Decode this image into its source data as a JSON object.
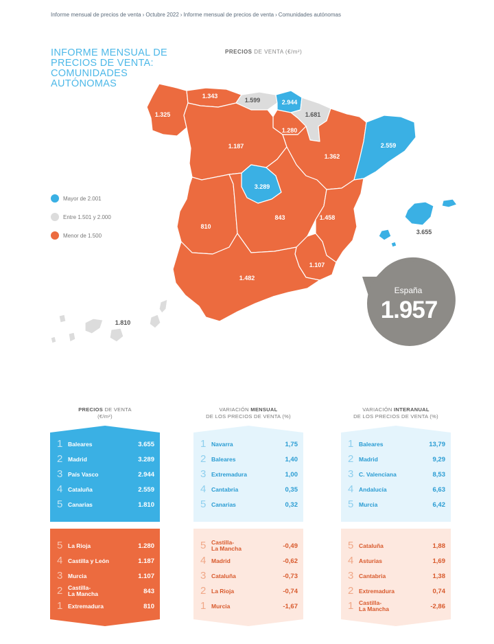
{
  "breadcrumb": [
    "Informe mensual de precios de venta",
    "Octubre 2022",
    "Informe mensual de precios de venta",
    "Comunidades autónomas"
  ],
  "title": "INFORME MENSUAL DE PRECIOS DE VENTA: COMUNIDADES AUTÓNOMAS",
  "map_heading": {
    "bold": "PRECIOS",
    "rest": " DE VENTA (€/m²)"
  },
  "legend": [
    {
      "label": "Mayor de 2.001",
      "color": "#3ab0e4"
    },
    {
      "label": "Entre 1.501 y 2.000",
      "color": "#dcdcdc"
    },
    {
      "label": "Menor de 1.500",
      "color": "#ec6b3f"
    }
  ],
  "colors": {
    "high": "#3ab0e4",
    "mid": "#dcdcdc",
    "low": "#ec6b3f",
    "badge": "#8d8b87"
  },
  "regions": {
    "galicia": {
      "value": "1.325",
      "tier": "low"
    },
    "asturias": {
      "value": "1.343",
      "tier": "low"
    },
    "cantabria": {
      "value": "1.599",
      "tier": "mid"
    },
    "pais_vasco": {
      "value": "2.944",
      "tier": "high"
    },
    "navarra": {
      "value": "1.681",
      "tier": "mid"
    },
    "la_rioja": {
      "value": "1.280",
      "tier": "low"
    },
    "castilla_leon": {
      "value": "1.187",
      "tier": "low"
    },
    "aragon": {
      "value": "1.362",
      "tier": "low"
    },
    "cataluna": {
      "value": "2.559",
      "tier": "high"
    },
    "madrid": {
      "value": "3.289",
      "tier": "high"
    },
    "extremadura": {
      "value": "810",
      "tier": "low"
    },
    "castilla_la_mancha": {
      "value": "843",
      "tier": "low"
    },
    "valencia": {
      "value": "1.458",
      "tier": "low"
    },
    "murcia": {
      "value": "1.107",
      "tier": "low"
    },
    "andalucia": {
      "value": "1.482",
      "tier": "low"
    },
    "baleares": {
      "value": "3.655",
      "tier": "high"
    },
    "canarias": {
      "value": "1.810",
      "tier": "mid"
    }
  },
  "spain_badge": {
    "label": "España",
    "value": "1.957"
  },
  "columns": [
    {
      "heading_pre": "",
      "heading_bold": "PRECIOS",
      "heading_post": " DE VENTA",
      "heading_line2": "(€/m²)",
      "top": [
        {
          "rank": "1",
          "name": "Baleares",
          "value": "3.655"
        },
        {
          "rank": "2",
          "name": "Madrid",
          "value": "3.289"
        },
        {
          "rank": "3",
          "name": "País Vasco",
          "value": "2.944"
        },
        {
          "rank": "4",
          "name": "Cataluña",
          "value": "2.559"
        },
        {
          "rank": "5",
          "name": "Canarias",
          "value": "1.810"
        }
      ],
      "bottom": [
        {
          "rank": "5",
          "name": "La Rioja",
          "value": "1.280"
        },
        {
          "rank": "4",
          "name": "Castilla y León",
          "value": "1.187"
        },
        {
          "rank": "3",
          "name": "Murcia",
          "value": "1.107"
        },
        {
          "rank": "2",
          "name": "Castilla-\nLa Mancha",
          "value": "843"
        },
        {
          "rank": "1",
          "name": "Extremadura",
          "value": "810"
        }
      ]
    },
    {
      "heading_pre": "VARIACIÓN ",
      "heading_bold": "MENSUAL",
      "heading_post": "",
      "heading_line2": "DE LOS PRECIOS DE VENTA (%)",
      "top": [
        {
          "rank": "1",
          "name": "Navarra",
          "value": "1,75"
        },
        {
          "rank": "2",
          "name": "Baleares",
          "value": "1,40"
        },
        {
          "rank": "3",
          "name": "Extremadura",
          "value": "1,00"
        },
        {
          "rank": "4",
          "name": "Cantabria",
          "value": "0,35"
        },
        {
          "rank": "5",
          "name": "Canarias",
          "value": "0,32"
        }
      ],
      "bottom": [
        {
          "rank": "5",
          "name": "Castilla-\nLa Mancha",
          "value": "-0,49"
        },
        {
          "rank": "4",
          "name": "Madrid",
          "value": "-0,62"
        },
        {
          "rank": "3",
          "name": "Cataluña",
          "value": "-0,73"
        },
        {
          "rank": "2",
          "name": "La Rioja",
          "value": "-0,74"
        },
        {
          "rank": "1",
          "name": "Murcia",
          "value": "-1,67"
        }
      ]
    },
    {
      "heading_pre": "VARIACIÓN ",
      "heading_bold": "INTERANUAL",
      "heading_post": "",
      "heading_line2": "DE LOS PRECIOS DE VENTA (%)",
      "top": [
        {
          "rank": "1",
          "name": "Baleares",
          "value": "13,79"
        },
        {
          "rank": "2",
          "name": "Madrid",
          "value": "9,29"
        },
        {
          "rank": "3",
          "name": "C. Valenciana",
          "value": "8,53"
        },
        {
          "rank": "4",
          "name": "Andalucía",
          "value": "6,63"
        },
        {
          "rank": "5",
          "name": "Murcia",
          "value": "6,42"
        }
      ],
      "bottom": [
        {
          "rank": "5",
          "name": "Cataluña",
          "value": "1,88"
        },
        {
          "rank": "4",
          "name": "Asturias",
          "value": "1,69"
        },
        {
          "rank": "3",
          "name": "Cantabria",
          "value": "1,38"
        },
        {
          "rank": "2",
          "name": "Extremadura",
          "value": "0,74"
        },
        {
          "rank": "1",
          "name": "Castilla-\nLa Mancha",
          "value": "-2,86"
        }
      ]
    }
  ]
}
